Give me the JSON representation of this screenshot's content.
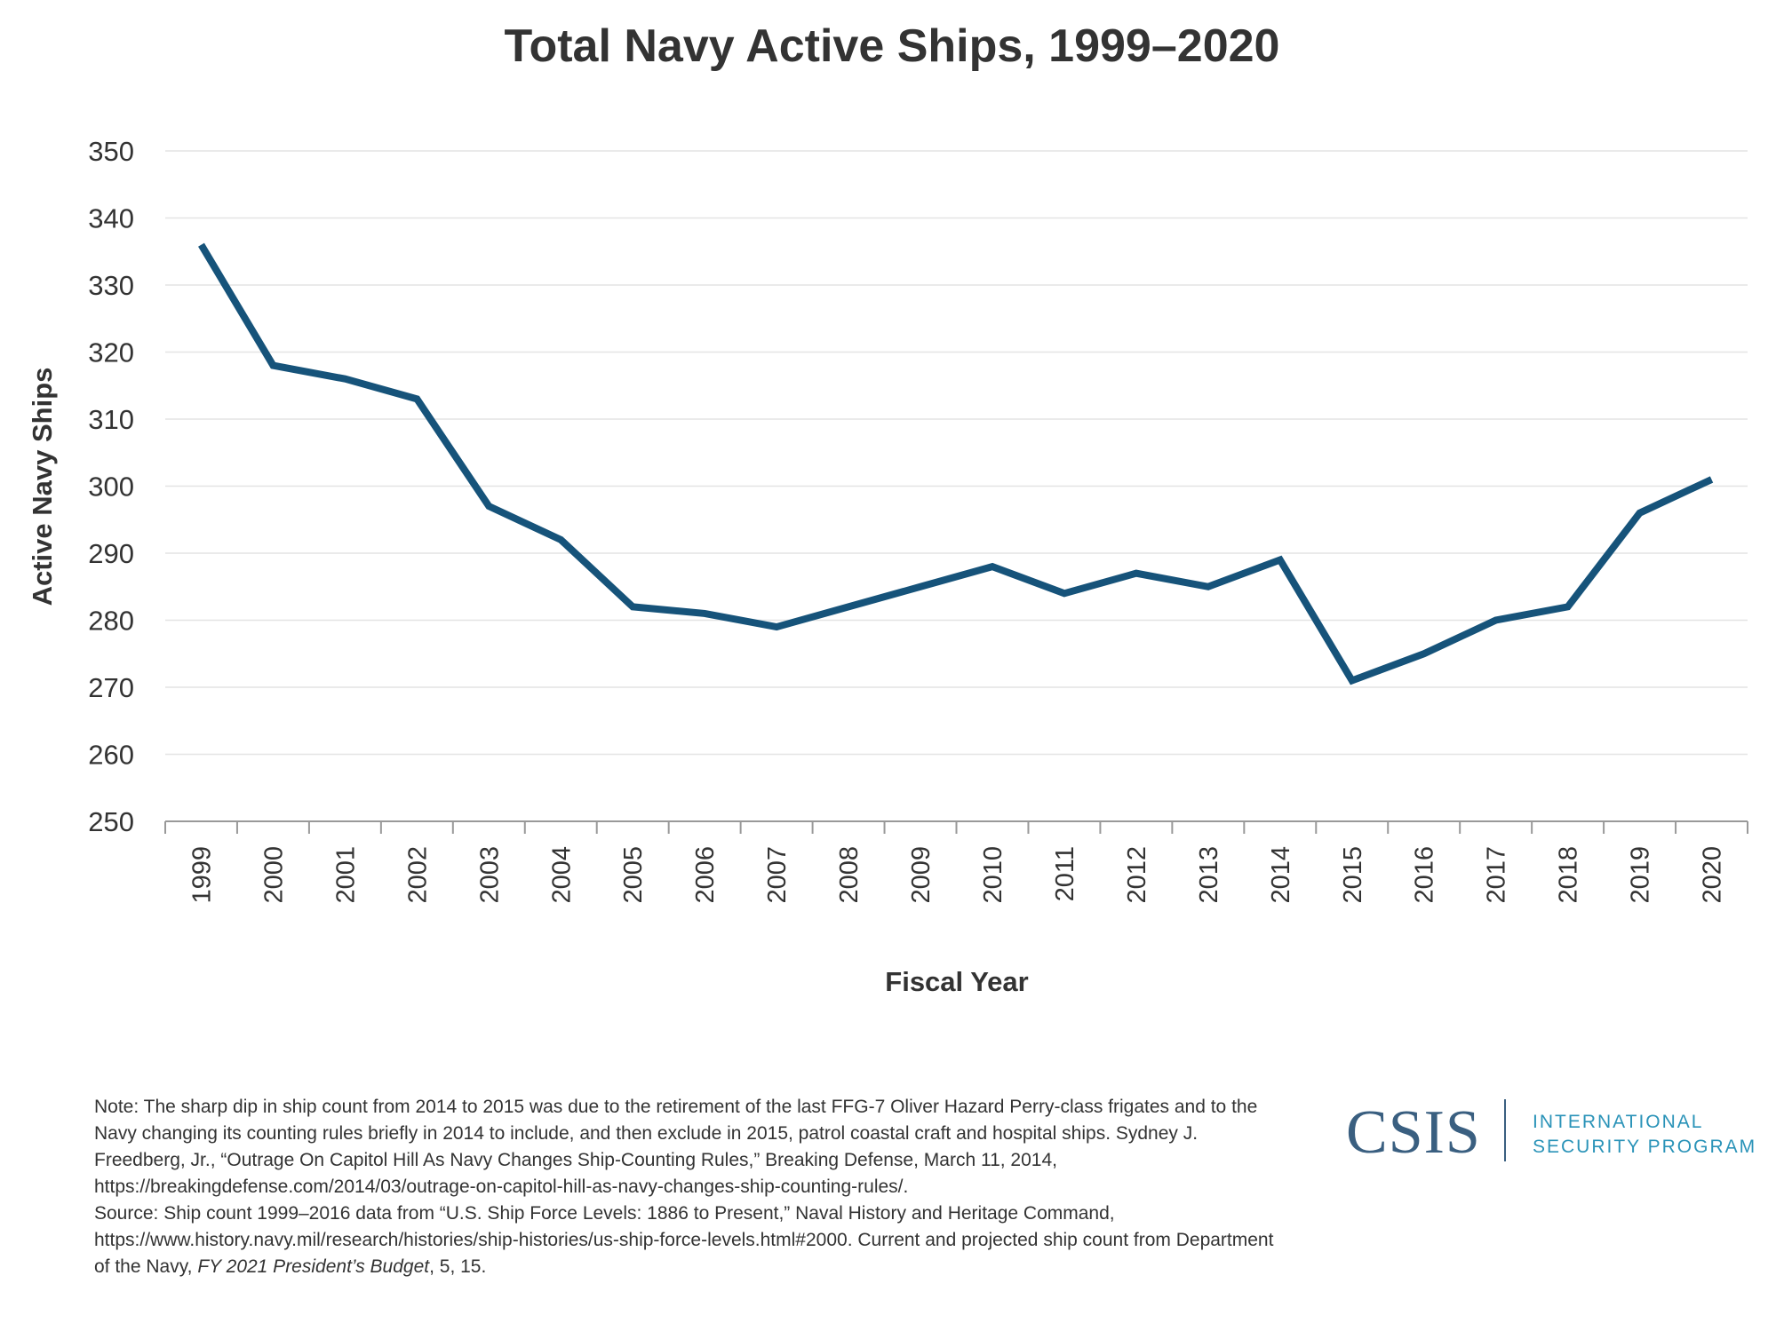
{
  "chart_data": {
    "type": "line",
    "title": "Total Navy Active Ships, 1999–2020",
    "xlabel": "Fiscal Year",
    "ylabel": "Active Navy Ships",
    "categories": [
      "1999",
      "2000",
      "2001",
      "2002",
      "2003",
      "2004",
      "2005",
      "2006",
      "2007",
      "2008",
      "2009",
      "2010",
      "2011",
      "2012",
      "2013",
      "2014",
      "2015",
      "2016",
      "2017",
      "2018",
      "2019",
      "2020"
    ],
    "values": [
      336,
      318,
      316,
      313,
      297,
      292,
      282,
      281,
      279,
      282,
      285,
      288,
      284,
      287,
      285,
      289,
      271,
      275,
      280,
      282,
      296,
      301
    ],
    "ylim": [
      250,
      350
    ],
    "yticks": [
      250,
      260,
      270,
      280,
      290,
      300,
      310,
      320,
      330,
      340,
      350
    ],
    "grid": true,
    "legend": "none",
    "line_color": "#16537a"
  },
  "footer": {
    "note": "Note: The sharp dip in ship count from 2014 to 2015 was due to the retirement of the last FFG-7 Oliver Hazard Perry-class frigates and to the Navy changing its counting rules briefly in 2014 to include, and then exclude in 2015, patrol coastal craft and hospital ships. Sydney J. Freedberg, Jr., “Outrage On Capitol Hill As Navy Changes Ship-Counting Rules,” Breaking Defense, March 11, 2014, https://breakingdefense.com/2014/03/outrage-on-capitol-hill-as-navy-changes-ship-counting-rules/.",
    "source_prefix": "Source: Ship count 1999–2016 data from “U.S. Ship Force Levels: 1886 to Present,” Naval History and Heritage Command, https://www.history.navy.mil/research/histories/ship-histories/us-ship-force-levels.html#2000. Current and projected ship count from Department of the Navy, ",
    "source_italic": "FY 2021 President’s Budget",
    "source_suffix": ", 5, 15."
  },
  "logo": {
    "name": "CSIS",
    "line1": "INTERNATIONAL",
    "line2": "SECURITY PROGRAM",
    "color_primary": "#3a5f80",
    "color_secondary": "#2a93b8"
  }
}
